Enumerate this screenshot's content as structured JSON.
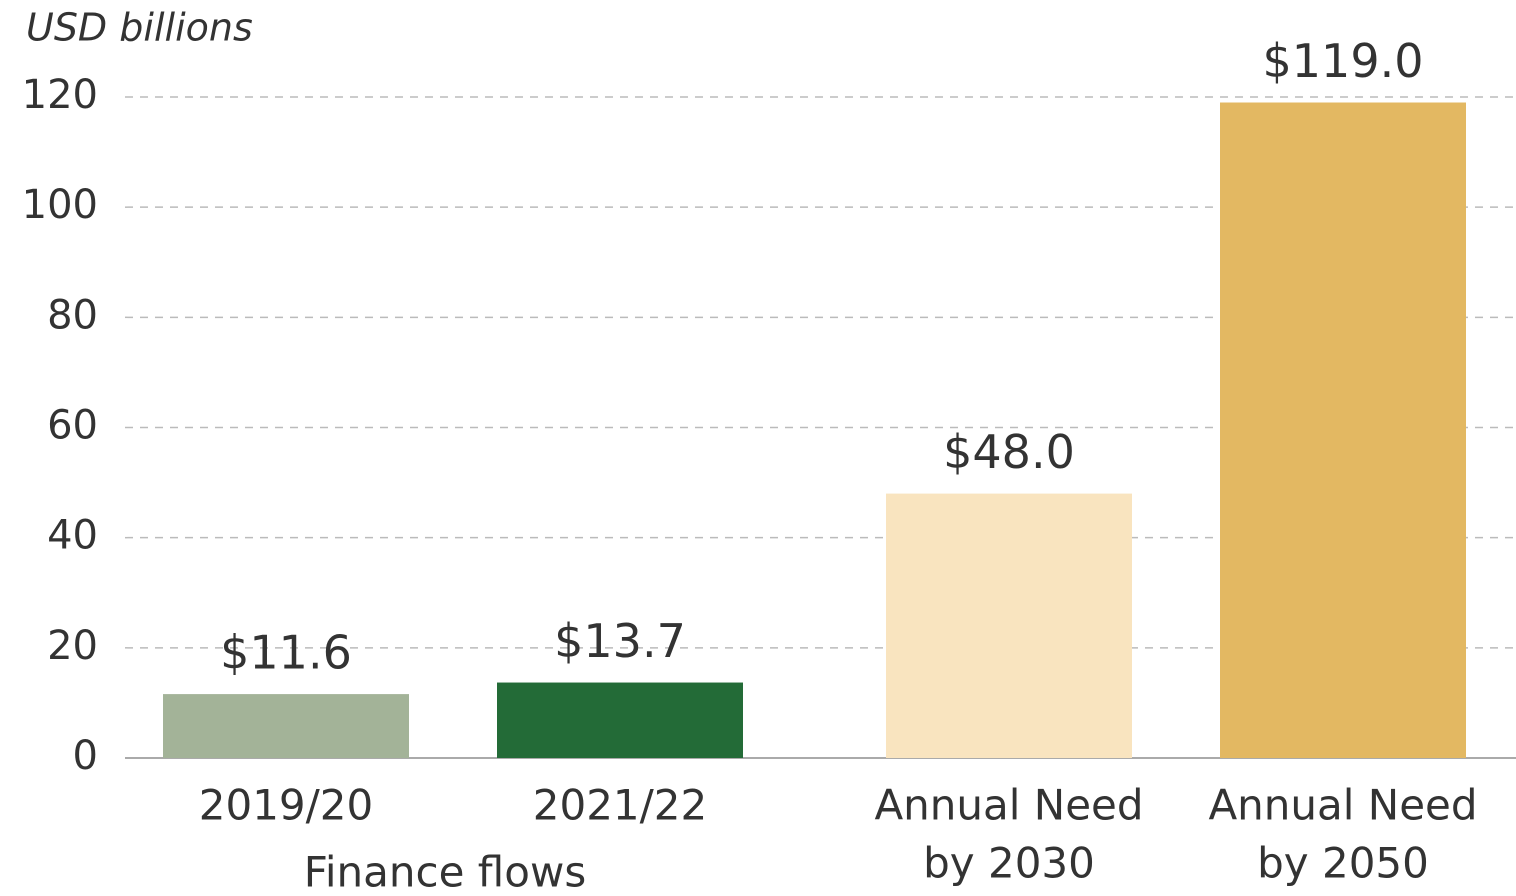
{
  "chart_data": {
    "type": "bar",
    "y_axis_label": "USD billions",
    "categories": [
      [
        "2019/20"
      ],
      [
        "2021/22"
      ],
      [
        "Annual Need",
        "by 2030"
      ],
      [
        "Annual Need",
        "by 2050"
      ]
    ],
    "group_label": "Finance flows",
    "values": [
      11.6,
      13.7,
      48.0,
      119.0
    ],
    "value_labels": [
      "$11.6",
      "$13.7",
      "$48.0",
      "$119.0"
    ],
    "colors": [
      "#a3b398",
      "#236b37",
      "#f9e4bf",
      "#e3b862"
    ],
    "ylim": [
      0,
      120
    ],
    "yticks": [
      0,
      20,
      40,
      60,
      80,
      100,
      120
    ],
    "grid": true
  }
}
